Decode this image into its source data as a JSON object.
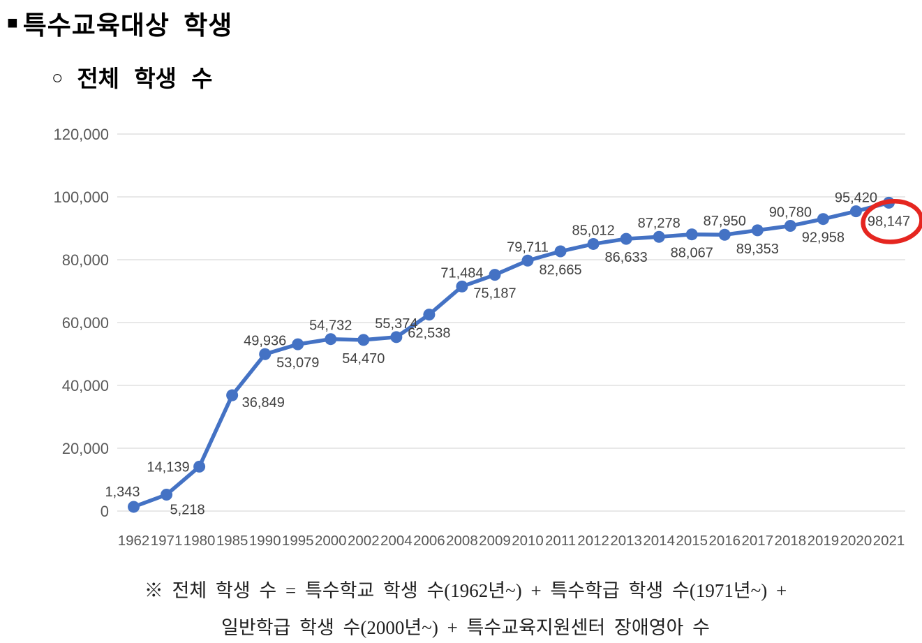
{
  "page": {
    "title_bullet": "■",
    "title": "특수교육대상 학생",
    "subtitle_bullet": "○",
    "subtitle": "전체 학생 수",
    "footnote_line1": "※ 전체 학생 수 = 특수학교 학생 수(1962년~) + 특수학급 학생 수(1971년~) +",
    "footnote_line2": "일반학급 학생 수(2000년~) + 특수교육지원센터 장애영아 수"
  },
  "chart_data": {
    "type": "line",
    "title": "전체 학생 수",
    "categories": [
      "1962",
      "1971",
      "1980",
      "1985",
      "1990",
      "1995",
      "2000",
      "2002",
      "2004",
      "2006",
      "2008",
      "2009",
      "2010",
      "2011",
      "2012",
      "2013",
      "2014",
      "2015",
      "2016",
      "2017",
      "2018",
      "2019",
      "2020",
      "2021"
    ],
    "series": [
      {
        "name": "전체 학생 수",
        "values": [
          1343,
          5218,
          14139,
          36849,
          49936,
          53079,
          54732,
          54470,
          55374,
          62538,
          71484,
          75187,
          79711,
          82665,
          85012,
          86633,
          87278,
          88067,
          87950,
          89353,
          90780,
          92958,
          95420,
          98147
        ]
      }
    ],
    "xlabel": "",
    "ylabel": "",
    "ylim": [
      0,
      120000
    ],
    "ytick_step": 20000,
    "grid": true,
    "legend": "none",
    "data_labels": true,
    "data_label_positions": [
      "above-left",
      "below-right",
      "left",
      "right",
      "above",
      "below",
      "above",
      "below",
      "above",
      "below",
      "above",
      "below",
      "above",
      "below",
      "above",
      "below",
      "above",
      "below",
      "above",
      "below",
      "above",
      "below",
      "above",
      "below"
    ],
    "highlight": {
      "category": "2021",
      "value": 98147,
      "shape": "red-ellipse"
    },
    "colors": {
      "line": "#4472C4",
      "marker": "#4472C4",
      "gridline": "#D9D9D9",
      "axis_text": "#595959",
      "data_label_text": "#404040",
      "highlight_stroke": "#E52620"
    }
  }
}
